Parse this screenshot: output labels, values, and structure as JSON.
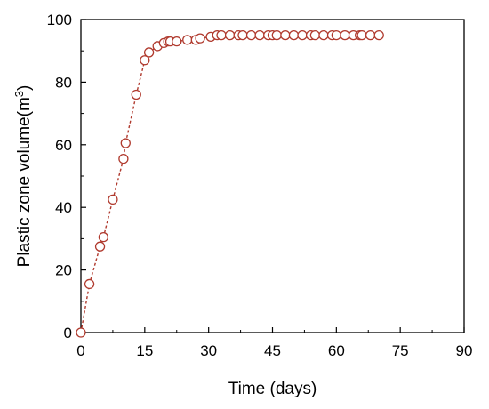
{
  "chart_data": {
    "type": "scatter",
    "title": "",
    "xlabel": "Time (days)",
    "ylabel_main": "Plastic zone volume(m",
    "ylabel_sup": "3",
    "ylabel_close": ")",
    "xlim": [
      0,
      90
    ],
    "ylim": [
      0,
      100
    ],
    "xticks": [
      0,
      15,
      30,
      45,
      60,
      75,
      90
    ],
    "yticks": [
      0,
      20,
      40,
      60,
      80,
      100
    ],
    "grid": false,
    "legend": "none",
    "marker": "open-circle",
    "line_style": "dashed",
    "color": "#b03a2e",
    "series": [
      {
        "x": [
          0,
          2,
          4.5,
          5.3,
          7.5,
          10,
          10.5,
          13,
          15,
          16,
          18,
          19.5,
          20.5,
          21,
          22.5,
          25,
          27,
          28,
          30.5,
          32,
          33,
          35,
          37,
          38,
          40,
          42,
          44,
          45,
          46,
          48,
          50,
          52,
          54,
          55,
          57,
          59,
          60,
          62,
          64,
          65.5,
          66,
          68,
          70
        ],
        "values": [
          0,
          15.5,
          27.5,
          30.5,
          42.5,
          55.5,
          60.5,
          76,
          87,
          89.5,
          91.5,
          92.5,
          93,
          93,
          93,
          93.5,
          93.5,
          94,
          94.5,
          95,
          95,
          95,
          95,
          95,
          95,
          95,
          95,
          95,
          95,
          95,
          95,
          95,
          95,
          95,
          95,
          95,
          95,
          95,
          95,
          95,
          95,
          95,
          95
        ]
      }
    ]
  }
}
